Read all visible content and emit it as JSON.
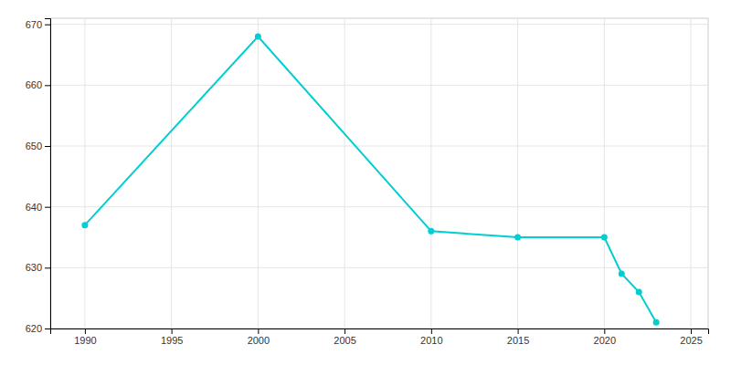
{
  "chart_data": {
    "type": "line",
    "x": [
      1990,
      2000,
      2010,
      2015,
      2020,
      2021,
      2022,
      2023
    ],
    "values": [
      637,
      668,
      636,
      635,
      635,
      629,
      626,
      621
    ],
    "color": "#00CED1",
    "marker": "circle",
    "xlim": [
      1988,
      2026
    ],
    "xticks": [
      1990,
      1995,
      2000,
      2005,
      2010,
      2015,
      2020,
      2025
    ],
    "ylim": [
      620,
      671
    ],
    "yticks": [
      620,
      630,
      640,
      650,
      660,
      670
    ],
    "grid": true
  }
}
